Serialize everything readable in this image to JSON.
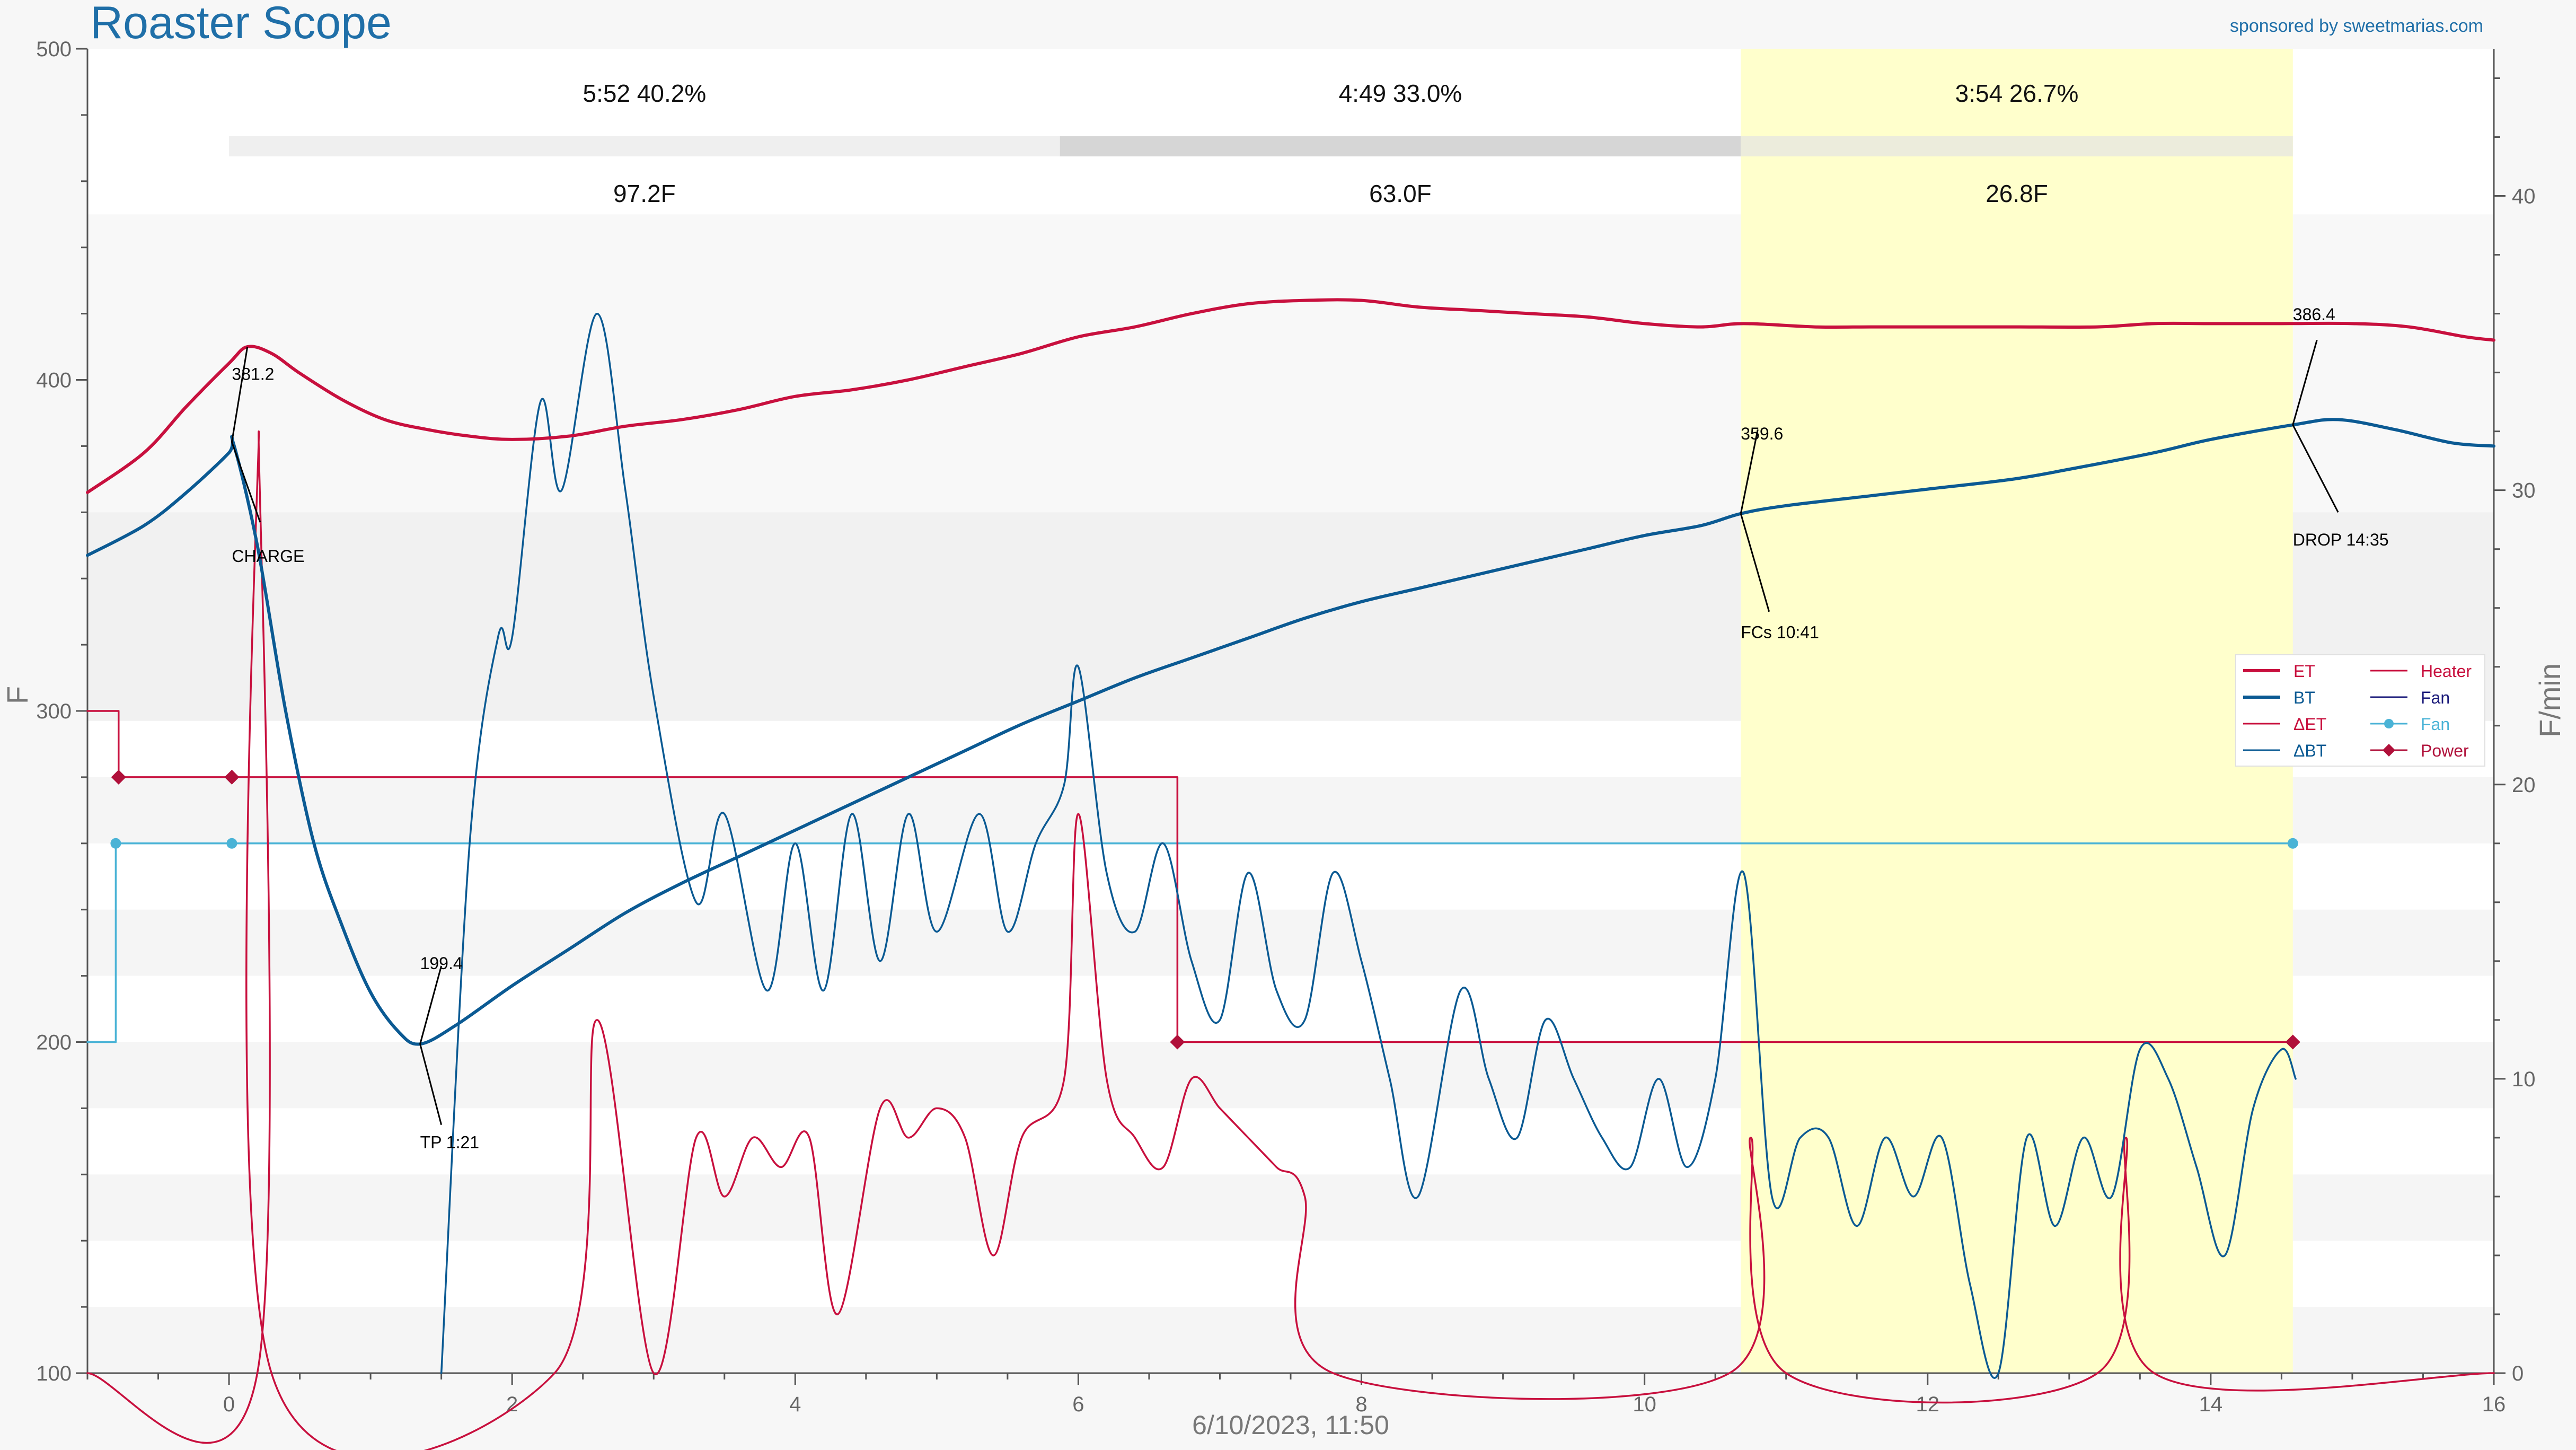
{
  "app": {
    "title": "Roaster Scope",
    "sponsor": "sponsored by sweetmarias.com"
  },
  "colors": {
    "et": "#c8103e",
    "bt": "#0b5a93",
    "fan": "#4ab3d6",
    "power": "#b0103a",
    "fan_legend": "#1a1a7a",
    "phase_highlight": "#ffffcc"
  },
  "phases": [
    {
      "time_label": "5:52  40.2%",
      "delta_label": "97.2F",
      "start": 0.0,
      "end": 5.87
    },
    {
      "time_label": "4:49  33.0%",
      "delta_label": "63.0F",
      "start": 5.87,
      "end": 10.68
    },
    {
      "time_label": "3:54  26.7%",
      "delta_label": "26.8F",
      "start": 10.68,
      "end": 14.58
    }
  ],
  "legend": {
    "items": [
      {
        "label": "ET",
        "color": "#c8103e",
        "style": "thick"
      },
      {
        "label": "Heater",
        "color": "#c8103e",
        "style": "thin"
      },
      {
        "label": "BT",
        "color": "#0b5a93",
        "style": "thick"
      },
      {
        "label": "Fan",
        "color": "#1a1a7a",
        "style": "thin"
      },
      {
        "label": "ΔET",
        "color": "#c8103e",
        "style": "thin"
      },
      {
        "label": "Fan",
        "color": "#4ab3d6",
        "style": "dot"
      },
      {
        "label": "ΔBT",
        "color": "#0b5a93",
        "style": "thin"
      },
      {
        "label": "Power",
        "color": "#b0103a",
        "style": "diamond"
      }
    ]
  },
  "annotations": {
    "charge": {
      "value": "381.2",
      "label": "CHARGE"
    },
    "tp": {
      "value": "199.4",
      "label": "TP 1:21"
    },
    "fcs": {
      "value": "359.6",
      "label": "FCs 10:41"
    },
    "drop": {
      "value": "386.4",
      "label": "DROP 14:35"
    }
  },
  "chart_data": {
    "type": "line",
    "title": "",
    "xlabel": "6/10/2023, 11:50",
    "ylabel": "F",
    "y2label": "F/min",
    "xlim": [
      -1.0,
      16.0
    ],
    "ylim": [
      100,
      500
    ],
    "y2lim": [
      0,
      45
    ],
    "x_ticks": [
      0,
      2,
      4,
      6,
      8,
      10,
      12,
      14,
      16
    ],
    "y_ticks": [
      100,
      200,
      300,
      400,
      500
    ],
    "y2_ticks": [
      0,
      10,
      20,
      30,
      40
    ],
    "grid": false,
    "legend_position": "right",
    "series": [
      {
        "name": "ET",
        "axis": "left",
        "points": [
          [
            -1.0,
            366
          ],
          [
            -0.6,
            378
          ],
          [
            -0.3,
            392
          ],
          [
            0.0,
            405
          ],
          [
            0.13,
            410
          ],
          [
            0.3,
            408
          ],
          [
            0.5,
            402
          ],
          [
            0.8,
            394
          ],
          [
            1.1,
            388
          ],
          [
            1.4,
            385
          ],
          [
            1.7,
            383
          ],
          [
            2.0,
            382
          ],
          [
            2.4,
            383
          ],
          [
            2.8,
            386
          ],
          [
            3.2,
            388
          ],
          [
            3.6,
            391
          ],
          [
            4.0,
            395
          ],
          [
            4.4,
            397
          ],
          [
            4.8,
            400
          ],
          [
            5.2,
            404
          ],
          [
            5.6,
            408
          ],
          [
            6.0,
            413
          ],
          [
            6.4,
            416
          ],
          [
            6.8,
            420
          ],
          [
            7.2,
            423
          ],
          [
            7.6,
            424
          ],
          [
            8.0,
            424
          ],
          [
            8.4,
            422
          ],
          [
            8.8,
            421
          ],
          [
            9.2,
            420
          ],
          [
            9.6,
            419
          ],
          [
            10.0,
            417
          ],
          [
            10.4,
            416
          ],
          [
            10.7,
            417
          ],
          [
            11.2,
            416
          ],
          [
            11.6,
            416
          ],
          [
            12.0,
            416
          ],
          [
            12.6,
            416
          ],
          [
            13.2,
            416
          ],
          [
            13.6,
            417
          ],
          [
            14.0,
            417
          ],
          [
            14.5,
            417
          ],
          [
            15.0,
            417
          ],
          [
            15.4,
            416
          ],
          [
            15.8,
            413
          ],
          [
            16.0,
            412
          ]
        ]
      },
      {
        "name": "BT",
        "axis": "left",
        "points": [
          [
            -1.0,
            347
          ],
          [
            -0.6,
            356
          ],
          [
            -0.3,
            366
          ],
          [
            0.0,
            378
          ],
          [
            0.03,
            381
          ],
          [
            0.2,
            350
          ],
          [
            0.4,
            300
          ],
          [
            0.6,
            260
          ],
          [
            0.8,
            235
          ],
          [
            1.0,
            215
          ],
          [
            1.2,
            203
          ],
          [
            1.35,
            199.4
          ],
          [
            1.6,
            205
          ],
          [
            2.0,
            217
          ],
          [
            2.4,
            228
          ],
          [
            2.8,
            239
          ],
          [
            3.2,
            248
          ],
          [
            3.6,
            256
          ],
          [
            4.0,
            264
          ],
          [
            4.4,
            272
          ],
          [
            4.8,
            280
          ],
          [
            5.2,
            288
          ],
          [
            5.6,
            296
          ],
          [
            6.0,
            303
          ],
          [
            6.4,
            310
          ],
          [
            6.8,
            316
          ],
          [
            7.2,
            322
          ],
          [
            7.6,
            328
          ],
          [
            8.0,
            333
          ],
          [
            8.4,
            337
          ],
          [
            8.8,
            341
          ],
          [
            9.2,
            345
          ],
          [
            9.6,
            349
          ],
          [
            10.0,
            353
          ],
          [
            10.4,
            356
          ],
          [
            10.68,
            359.6
          ],
          [
            11.0,
            362
          ],
          [
            11.6,
            365
          ],
          [
            12.0,
            367
          ],
          [
            12.6,
            370
          ],
          [
            13.0,
            373
          ],
          [
            13.6,
            378
          ],
          [
            14.0,
            382
          ],
          [
            14.58,
            386.4
          ],
          [
            14.9,
            388
          ],
          [
            15.3,
            385
          ],
          [
            15.7,
            381
          ],
          [
            16.0,
            380
          ]
        ]
      },
      {
        "name": "ΔET",
        "axis": "right",
        "points": [
          [
            -1.0,
            0
          ],
          [
            0.2,
            0
          ],
          [
            0.21,
            32
          ],
          [
            0.3,
            0
          ],
          [
            2.3,
            0
          ],
          [
            2.6,
            12
          ],
          [
            3.0,
            0
          ],
          [
            3.3,
            8
          ],
          [
            3.5,
            6
          ],
          [
            3.7,
            8
          ],
          [
            3.9,
            7
          ],
          [
            4.1,
            8
          ],
          [
            4.3,
            2
          ],
          [
            4.6,
            9
          ],
          [
            4.8,
            8
          ],
          [
            5.0,
            9
          ],
          [
            5.2,
            8
          ],
          [
            5.4,
            4
          ],
          [
            5.6,
            8
          ],
          [
            5.9,
            10
          ],
          [
            6.0,
            19
          ],
          [
            6.2,
            10
          ],
          [
            6.4,
            8
          ],
          [
            6.6,
            7
          ],
          [
            6.8,
            10
          ],
          [
            7.0,
            9
          ],
          [
            7.2,
            8
          ],
          [
            7.4,
            7
          ],
          [
            7.6,
            6
          ],
          [
            7.8,
            0
          ],
          [
            10.6,
            0
          ],
          [
            10.75,
            8
          ],
          [
            11.0,
            0
          ],
          [
            13.2,
            0
          ],
          [
            13.4,
            8
          ],
          [
            13.6,
            0
          ],
          [
            16.0,
            0
          ]
        ]
      },
      {
        "name": "ΔBT",
        "axis": "right",
        "points": [
          [
            1.5,
            0
          ],
          [
            1.7,
            18
          ],
          [
            1.9,
            25
          ],
          [
            2.0,
            25
          ],
          [
            2.2,
            33
          ],
          [
            2.35,
            30
          ],
          [
            2.6,
            36
          ],
          [
            2.8,
            30
          ],
          [
            3.0,
            23
          ],
          [
            3.3,
            16
          ],
          [
            3.5,
            19
          ],
          [
            3.8,
            13
          ],
          [
            4.0,
            18
          ],
          [
            4.2,
            13
          ],
          [
            4.4,
            19
          ],
          [
            4.6,
            14
          ],
          [
            4.8,
            19
          ],
          [
            5.0,
            15
          ],
          [
            5.3,
            19
          ],
          [
            5.5,
            15
          ],
          [
            5.7,
            18
          ],
          [
            5.9,
            20
          ],
          [
            6.0,
            24
          ],
          [
            6.2,
            17
          ],
          [
            6.4,
            15
          ],
          [
            6.6,
            18
          ],
          [
            6.8,
            14
          ],
          [
            7.0,
            12
          ],
          [
            7.2,
            17
          ],
          [
            7.4,
            13
          ],
          [
            7.6,
            12
          ],
          [
            7.8,
            17
          ],
          [
            8.0,
            14
          ],
          [
            8.2,
            10
          ],
          [
            8.4,
            6
          ],
          [
            8.7,
            13
          ],
          [
            8.9,
            10
          ],
          [
            9.1,
            8
          ],
          [
            9.3,
            12
          ],
          [
            9.5,
            10
          ],
          [
            9.7,
            8
          ],
          [
            9.9,
            7
          ],
          [
            10.1,
            10
          ],
          [
            10.3,
            7
          ],
          [
            10.5,
            10
          ],
          [
            10.7,
            17
          ],
          [
            10.9,
            6
          ],
          [
            11.1,
            8
          ],
          [
            11.3,
            8
          ],
          [
            11.5,
            5
          ],
          [
            11.7,
            8
          ],
          [
            11.9,
            6
          ],
          [
            12.1,
            8
          ],
          [
            12.3,
            3
          ],
          [
            12.5,
            0
          ],
          [
            12.7,
            8
          ],
          [
            12.9,
            5
          ],
          [
            13.1,
            8
          ],
          [
            13.3,
            6
          ],
          [
            13.5,
            11
          ],
          [
            13.7,
            10
          ],
          [
            13.9,
            7
          ],
          [
            14.1,
            4
          ],
          [
            14.3,
            9
          ],
          [
            14.5,
            11
          ],
          [
            14.6,
            10
          ]
        ]
      },
      {
        "name": "Heater",
        "axis": "left",
        "step": true,
        "points": [
          [
            -1.0,
            300
          ],
          [
            -0.78,
            300
          ],
          [
            -0.78,
            280
          ],
          [
            6.7,
            280
          ],
          [
            6.7,
            200
          ],
          [
            14.58,
            200
          ]
        ]
      },
      {
        "name": "Fan",
        "axis": "left",
        "step": true,
        "points": [
          [
            -1.0,
            200
          ],
          [
            -0.8,
            200
          ],
          [
            -0.8,
            260
          ],
          [
            14.58,
            260
          ]
        ]
      },
      {
        "name": "Power",
        "axis": "left",
        "markers": [
          [
            -0.78,
            280
          ],
          [
            0.02,
            280
          ],
          [
            6.7,
            200
          ],
          [
            14.58,
            200
          ]
        ]
      },
      {
        "name": "Fan",
        "axis": "left",
        "markers": [
          [
            -0.8,
            260
          ],
          [
            0.02,
            260
          ],
          [
            14.58,
            260
          ]
        ]
      }
    ],
    "events": [
      {
        "label": "CHARGE",
        "time": 0.02,
        "value": 381.2
      },
      {
        "label": "TP 1:21",
        "time": 1.35,
        "value": 199.4
      },
      {
        "label": "FCs 10:41",
        "time": 10.68,
        "value": 359.6
      },
      {
        "label": "DROP 14:35",
        "time": 14.58,
        "value": 386.4
      }
    ]
  }
}
